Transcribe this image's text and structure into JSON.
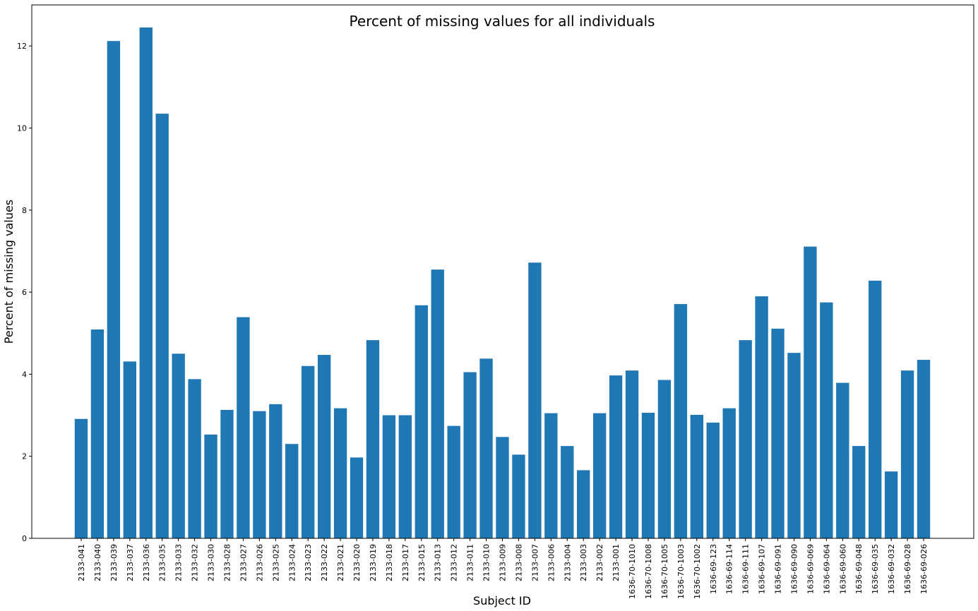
{
  "chart_data": {
    "type": "bar",
    "title": "Percent of missing values for all individuals",
    "xlabel": "Subject ID",
    "ylabel": "Percent of missing values",
    "ylim": [
      0,
      13.0
    ],
    "yticks": [
      "0",
      "2",
      "4",
      "6",
      "8",
      "10",
      "12"
    ],
    "grid": false,
    "bar_color": "#1f77b4",
    "categories": [
      "2133-041",
      "2133-040",
      "2133-039",
      "2133-037",
      "2133-036",
      "2133-035",
      "2133-033",
      "2133-032",
      "2133-030",
      "2133-028",
      "2133-027",
      "2133-026",
      "2133-025",
      "2133-024",
      "2133-023",
      "2133-022",
      "2133-021",
      "2133-020",
      "2133-019",
      "2133-018",
      "2133-017",
      "2133-015",
      "2133-013",
      "2133-012",
      "2133-011",
      "2133-010",
      "2133-009",
      "2133-008",
      "2133-007",
      "2133-006",
      "2133-004",
      "2133-003",
      "2133-002",
      "2133-001",
      "1636-70-1010",
      "1636-70-1008",
      "1636-70-1005",
      "1636-70-1003",
      "1636-70-1002",
      "1636-69-123",
      "1636-69-114",
      "1636-69-111",
      "1636-69-107",
      "1636-69-091",
      "1636-69-090",
      "1636-69-069",
      "1636-69-064",
      "1636-69-060",
      "1636-69-048",
      "1636-69-035",
      "1636-69-032",
      "1636-69-028",
      "1636-69-026"
    ],
    "values": [
      2.91,
      5.09,
      12.12,
      4.31,
      12.45,
      10.35,
      4.5,
      3.88,
      2.53,
      3.13,
      5.39,
      3.1,
      3.27,
      2.3,
      4.2,
      4.47,
      3.17,
      1.97,
      4.83,
      3.0,
      3.0,
      5.68,
      6.55,
      2.74,
      4.05,
      4.38,
      2.47,
      2.04,
      6.72,
      3.05,
      2.25,
      1.66,
      3.05,
      3.97,
      4.09,
      3.06,
      3.86,
      5.71,
      3.01,
      2.82,
      3.17,
      4.83,
      5.9,
      5.11,
      4.52,
      7.11,
      5.75,
      3.79,
      2.25,
      6.28,
      1.63,
      4.09,
      4.35
    ]
  }
}
